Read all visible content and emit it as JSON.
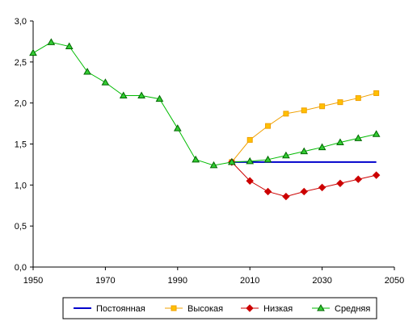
{
  "chart_data": {
    "type": "line",
    "x_ticks": [
      1950,
      1970,
      1990,
      2010,
      2030,
      2050
    ],
    "y_ticks": [
      "0,0",
      "0,5",
      "1,0",
      "1,5",
      "2,0",
      "2,5",
      "3,0"
    ],
    "xlim": [
      1950,
      2050
    ],
    "ylim": [
      0,
      3
    ],
    "grid": false,
    "legend_position": "bottom",
    "series": [
      {
        "name": "Постоянная",
        "color": "#0000cc",
        "marker": "none",
        "x": [
          2005,
          2045
        ],
        "y": [
          1.28,
          1.28
        ]
      },
      {
        "name": "Высокая",
        "color": "#f0a000",
        "fill": "#ffc000",
        "marker": "square",
        "x": [
          2005,
          2010,
          2015,
          2020,
          2025,
          2030,
          2035,
          2040,
          2045
        ],
        "y": [
          1.28,
          1.55,
          1.72,
          1.87,
          1.91,
          1.96,
          2.01,
          2.06,
          2.12
        ]
      },
      {
        "name": "Низкая",
        "color": "#cc0000",
        "fill": "#cc0000",
        "marker": "diamond",
        "x": [
          2005,
          2010,
          2015,
          2020,
          2025,
          2030,
          2035,
          2040,
          2045
        ],
        "y": [
          1.28,
          1.05,
          0.92,
          0.86,
          0.92,
          0.97,
          1.02,
          1.07,
          1.12
        ]
      },
      {
        "name": "Средняя",
        "color": "#00bb00",
        "fill": "#33cc33",
        "marker": "triangle",
        "x": [
          1950,
          1955,
          1960,
          1965,
          1970,
          1975,
          1980,
          1985,
          1990,
          1995,
          2000,
          2005,
          2010,
          2015,
          2020,
          2025,
          2030,
          2035,
          2040,
          2045
        ],
        "y": [
          2.61,
          2.74,
          2.69,
          2.38,
          2.25,
          2.09,
          2.09,
          2.05,
          1.69,
          1.31,
          1.24,
          1.28,
          1.29,
          1.31,
          1.36,
          1.41,
          1.46,
          1.52,
          1.57,
          1.62
        ]
      }
    ]
  }
}
